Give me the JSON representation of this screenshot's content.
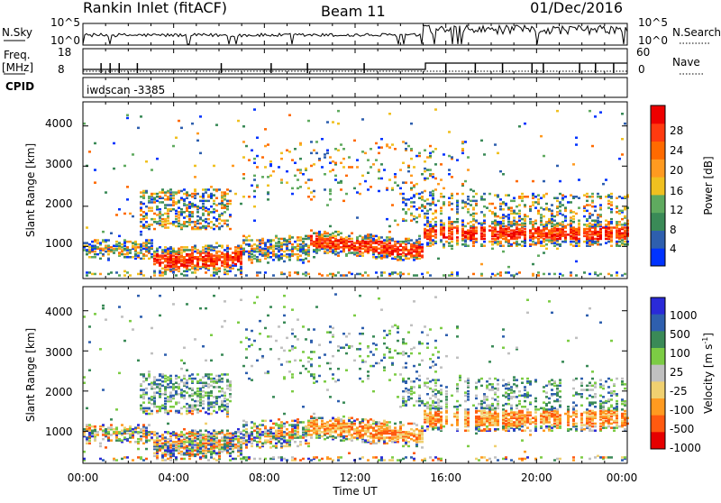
{
  "header": {
    "station": "Rankin Inlet (fitACF)",
    "beam": "Beam 11",
    "date": "01/Dec/2016"
  },
  "top_panels": {
    "nsky_label": "N.Sky",
    "nsky_ticks": [
      "10^5",
      "10^0"
    ],
    "nsearch_label": "N.Search",
    "nsearch_ticks": [
      "10^5",
      "10^0"
    ],
    "freq_label": "Freq.",
    "freq_unit": "[MHz]",
    "freq_ticks": [
      "18",
      "8"
    ],
    "nave_label": "Nave",
    "nave_ticks": [
      "60",
      "0"
    ],
    "cpid_label": "CPID",
    "cpid_value": "iwdscan -3385"
  },
  "colors": {
    "power_scale": [
      "#0033ff",
      "#2e5fae",
      "#3a8a57",
      "#5faa5f",
      "#f0c020",
      "#ff9a20",
      "#ff6a00",
      "#ff3a10",
      "#ee0000"
    ],
    "velocity_scale": [
      "#2a2ad8",
      "#2e5fae",
      "#3a8a57",
      "#7ccc44",
      "#c0c0c0",
      "#f0d070",
      "#ff9a20",
      "#ff5a10",
      "#e60000"
    ]
  },
  "chart_data": [
    {
      "type": "heatmap",
      "name": "power",
      "ylabel": "Slant Range [km]",
      "yticks": [
        "1000",
        "2000",
        "3000",
        "4000"
      ],
      "ylim": [
        200,
        4600
      ],
      "xlim": [
        "00:00",
        "24:00"
      ],
      "colorbar_label": "Power [dB]",
      "colorbar_ticks": [
        "4",
        "8",
        "12",
        "16",
        "20",
        "24",
        "28"
      ],
      "colorbar_range": [
        0,
        30
      ]
    },
    {
      "type": "heatmap",
      "name": "velocity",
      "ylabel": "Slant Range [km]",
      "yticks": [
        "1000",
        "2000",
        "3000",
        "4000"
      ],
      "ylim": [
        200,
        4600
      ],
      "xlabel": "Time UT",
      "xticks": [
        "00:00",
        "04:00",
        "08:00",
        "12:00",
        "16:00",
        "20:00",
        "00:00"
      ],
      "colorbar_label": "Velocity [m s",
      "colorbar_label_exp": "-1",
      "colorbar_label_end": "]",
      "colorbar_ticks": [
        "1000",
        "500",
        "100",
        "25",
        "-25",
        "-100",
        "-500",
        "-1000"
      ],
      "colorbar_range": [
        -1200,
        1200
      ]
    }
  ]
}
